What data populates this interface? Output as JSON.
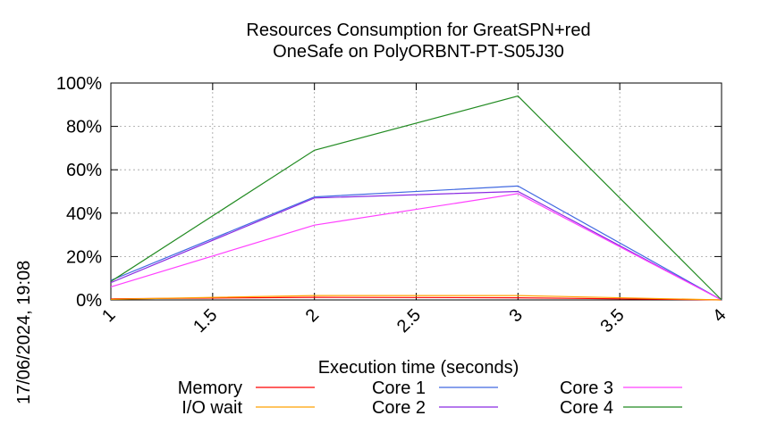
{
  "side_stamp": "17/06/2024, 19:08",
  "chart_data": {
    "type": "line",
    "title": [
      "Resources Consumption for GreatSPN+red",
      "OneSafe on PolyORBNT-PT-S05J30"
    ],
    "xlabel": "Execution time (seconds)",
    "ylabel": "",
    "xlim": [
      1,
      4
    ],
    "ylim": [
      0,
      100
    ],
    "x_ticks": [
      1,
      1.5,
      2,
      2.5,
      3,
      3.5,
      4
    ],
    "x_tick_labels": [
      "1",
      "1.5",
      "2",
      "2.5",
      "3",
      "3.5",
      "4"
    ],
    "y_ticks": [
      0,
      20,
      40,
      60,
      80,
      100
    ],
    "y_tick_labels": [
      "0%",
      "20%",
      "40%",
      "60%",
      "80%",
      "100%"
    ],
    "grid": true,
    "legend_position": "bottom",
    "x": [
      1,
      2,
      3,
      4
    ],
    "series": [
      {
        "name": "Memory",
        "color": "#ff0000",
        "values": [
          0.5,
          1.2,
          1.0,
          0.0
        ]
      },
      {
        "name": "I/O wait",
        "color": "#ffa000",
        "values": [
          0.3,
          2.0,
          2.0,
          0.0
        ]
      },
      {
        "name": "Core 1",
        "color": "#4169e1",
        "values": [
          9.0,
          47.5,
          52.5,
          0.0
        ]
      },
      {
        "name": "Core 2",
        "color": "#8a2be2",
        "values": [
          8.0,
          47.0,
          50.0,
          0.0
        ]
      },
      {
        "name": "Core 3",
        "color": "#ff40ff",
        "values": [
          6.0,
          34.5,
          49.0,
          0.0
        ]
      },
      {
        "name": "Core 4",
        "color": "#228b22",
        "values": [
          8.5,
          69.0,
          94.0,
          0.0
        ]
      }
    ]
  }
}
